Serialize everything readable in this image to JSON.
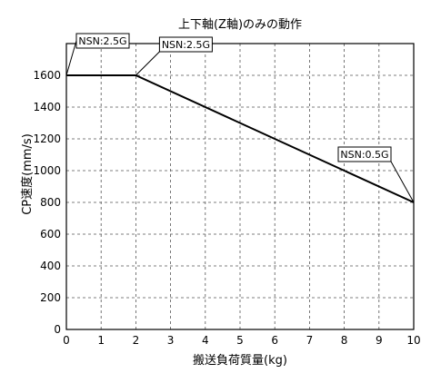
{
  "chart_data": {
    "type": "line",
    "title": "上下軸(Z軸)のみの動作",
    "xlabel": "搬送負荷質量(kg)",
    "ylabel": "CP速度(mm/s)",
    "xlim": [
      0,
      10
    ],
    "ylim": [
      0,
      1800
    ],
    "x_ticks": [
      0,
      1,
      2,
      3,
      4,
      5,
      6,
      7,
      8,
      9,
      10
    ],
    "x_tick_labels": [
      "0",
      "1",
      "2",
      "3",
      "4",
      "5",
      "6",
      "7",
      "8",
      "9",
      "10"
    ],
    "y_ticks": [
      0,
      200,
      400,
      600,
      800,
      1000,
      1200,
      1400,
      1600
    ],
    "y_tick_labels": [
      "0",
      "200",
      "400",
      "600",
      "800",
      "1000",
      "1200",
      "1400",
      "1600"
    ],
    "grid": true,
    "series": [
      {
        "x": [
          0,
          2,
          10
        ],
        "y": [
          1600,
          1600,
          800
        ]
      }
    ],
    "annotations": [
      {
        "text": "NSN:2.5G",
        "x": 0,
        "y": 1600
      },
      {
        "text": "NSN:2.5G",
        "x": 2,
        "y": 1600
      },
      {
        "text": "NSN:0.5G",
        "x": 10,
        "y": 800
      }
    ]
  }
}
